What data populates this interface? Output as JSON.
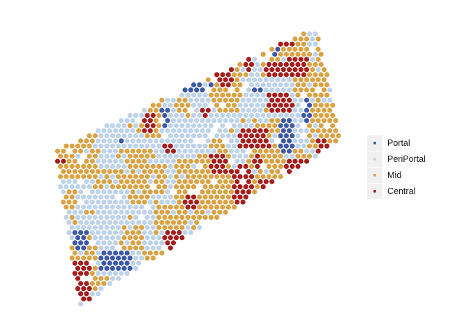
{
  "chart_data": {
    "type": "scatter",
    "title": "",
    "xlabel": "",
    "ylabel": "",
    "axes_visible": false,
    "grid": false,
    "legend_position": "right",
    "point_layout": "hexagonal spot grid arranged as a slanted parallelogram tissue section",
    "series": [
      {
        "name": "Portal",
        "color": "#3c58a7",
        "share": 0.04
      },
      {
        "name": "PeriPortal",
        "color": "#bdd3ea",
        "share": 0.6
      },
      {
        "name": "Mid",
        "color": "#d9a345",
        "share": 0.26
      },
      {
        "name": "Central",
        "color": "#a51d1c",
        "share": 0.1
      }
    ]
  }
}
